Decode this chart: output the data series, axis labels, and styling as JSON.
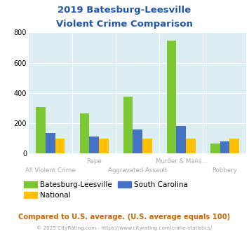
{
  "title_line1": "2019 Batesburg-Leesville",
  "title_line2": "Violent Crime Comparison",
  "title_color": "#2255aa",
  "xlabel_top": [
    "",
    "Rape",
    "",
    "Murder & Mans...",
    ""
  ],
  "xlabel_bot": [
    "All Violent Crime",
    "",
    "Aggravated Assault",
    "",
    "Robbery"
  ],
  "batesburg": [
    305,
    265,
    375,
    745,
    65
  ],
  "south_carolina": [
    135,
    115,
    160,
    180,
    80
  ],
  "national": [
    100,
    100,
    100,
    100,
    100
  ],
  "bar_color_batesburg": "#7dc832",
  "bar_color_sc": "#4472c4",
  "bar_color_national": "#ffc000",
  "ylim": [
    0,
    800
  ],
  "yticks": [
    0,
    200,
    400,
    600,
    800
  ],
  "plot_bg": "#ddeef2",
  "legend_label_b": "Batesburg-Leesville",
  "legend_label_n": "National",
  "legend_label_sc": "South Carolina",
  "footer_text": "Compared to U.S. average. (U.S. average equals 100)",
  "footer_color": "#cc6600",
  "copyright_text": "© 2025 CityRating.com - https://www.cityrating.com/crime-statistics/",
  "copyright_color": "#999999"
}
